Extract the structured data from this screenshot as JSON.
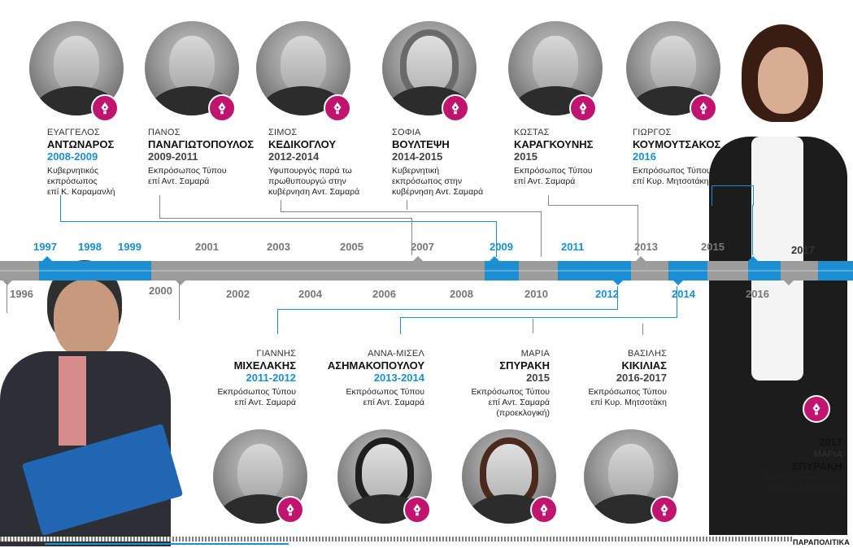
{
  "top_people": [
    {
      "first": "ΕΥΑΓΓΕΛΟΣ",
      "last": "ΑΝΤΩΝΑΡΟΣ",
      "years": "2008-2009",
      "role": [
        "Κυβερνητικός",
        "εκπρόσωπος",
        "επί Κ. Καραμανλή"
      ],
      "years_color": "blue"
    },
    {
      "first": "ΠΑΝΟΣ",
      "last": "ΠΑΝΑΓΙΩΤΟΠΟΥΛΟΣ",
      "years": "2009-2011",
      "role": [
        "Εκπρόσωπος Τύπου",
        "επί Αντ. Σαμαρά"
      ],
      "years_color": "grey"
    },
    {
      "first": "ΣΙΜΟΣ",
      "last": "ΚΕΔΙΚΟΓΛΟΥ",
      "years": "2012-2014",
      "role": [
        "Υφυπουργός παρά τω",
        "πρωθυπουργώ στην",
        "κυβέρνηση Αντ. Σαμαρά"
      ],
      "years_color": "grey"
    },
    {
      "first": "ΣΟΦΙΑ",
      "last": "ΒΟΥΛΤΕΨΗ",
      "years": "2014-2015",
      "role": [
        "Κυβερνητική",
        "εκπρόσωπος στην",
        "κυβέρνηση Αντ. Σαμαρά"
      ],
      "years_color": "grey"
    },
    {
      "first": "ΚΩΣΤΑΣ",
      "last": "ΚΑΡΑΓΚΟΥΝΗΣ",
      "years": "2015",
      "role": [
        "Εκπρόσωπος Τύπου",
        "επί Αντ. Σαμαρά"
      ],
      "years_color": "grey"
    },
    {
      "first": "ΓΙΩΡΓΟΣ",
      "last": "ΚΟΥΜΟΥΤΣΑΚΟΣ",
      "years": "2016",
      "role": [
        "Εκπρόσωπος Τύπου",
        "επί Κυρ. Μητσοτάκη"
      ],
      "years_color": "blue"
    }
  ],
  "bottom_people": [
    {
      "first": "ΓΙΑΝΝΗΣ",
      "last": "ΜΙΧΕΛΑΚΗΣ",
      "years": "2011-2012",
      "role": [
        "Εκπρόσωπος Τύπου",
        "επί Αντ. Σαμαρά"
      ],
      "years_color": "blue"
    },
    {
      "first": "ΑΝΝΑ-ΜΙΣΕΛ",
      "last": "ΑΣΗΜΑΚΟΠΟΥΛΟΥ",
      "years": "2013-2014",
      "role": [
        "Εκπρόσωπος Τύπου",
        "επί Αντ. Σαμαρά"
      ],
      "years_color": "blue"
    },
    {
      "first": "ΜΑΡΙΑ",
      "last": "ΣΠΥΡΑΚΗ",
      "years": "2015",
      "role": [
        "Εκπρόσωπος Τύπου",
        "επί Αντ. Σαμαρά",
        "(προεκλογική)"
      ],
      "years_color": "grey"
    },
    {
      "first": "ΒΑΣΙΛΗΣ",
      "last": "ΚΙΚΙΛΙΑΣ",
      "years": "2016-2017",
      "role": [
        "Εκπρόσωπος Τύπου",
        "επί Κυρ. Μητσοτάκη"
      ],
      "years_color": "grey"
    }
  ],
  "featured": {
    "year": "2017",
    "first": "ΜΑΡΙΑ",
    "last": "ΣΠΥΡΑΚΗ",
    "role": [
      "Εκπρόσωπος Τύπου",
      "επί Κυρ. Μητσοτάκη"
    ]
  },
  "timeline_top_years": [
    {
      "label": "1997",
      "style": "blue"
    },
    {
      "label": "1998",
      "style": "blue"
    },
    {
      "label": "1999",
      "style": "blue"
    },
    {
      "label": "2001",
      "style": "grey"
    },
    {
      "label": "2003",
      "style": "grey"
    },
    {
      "label": "2005",
      "style": "grey"
    },
    {
      "label": "2007",
      "style": "grey"
    },
    {
      "label": "2009",
      "style": "blue"
    },
    {
      "label": "2011",
      "style": "blue"
    },
    {
      "label": "2013",
      "style": "grey"
    },
    {
      "label": "2015",
      "style": "grey"
    },
    {
      "label": "2017",
      "style": "dark"
    }
  ],
  "timeline_bottom_years": [
    {
      "label": "1996",
      "style": "grey"
    },
    {
      "label": "2000",
      "style": "grey"
    },
    {
      "label": "2002",
      "style": "grey"
    },
    {
      "label": "2004",
      "style": "grey"
    },
    {
      "label": "2006",
      "style": "grey"
    },
    {
      "label": "2008",
      "style": "grey"
    },
    {
      "label": "2010",
      "style": "grey"
    },
    {
      "label": "2012",
      "style": "blue"
    },
    {
      "label": "2014",
      "style": "blue"
    },
    {
      "label": "2016",
      "style": "grey"
    }
  ],
  "brand": "ΠΑΡΑΠΟΛΙΤΙΚΑ",
  "colors": {
    "accent": "#1b8fd1",
    "badge": "#c1146e",
    "bar": "#9c9c9c"
  },
  "badge_icon": "fountain-pen-icon"
}
